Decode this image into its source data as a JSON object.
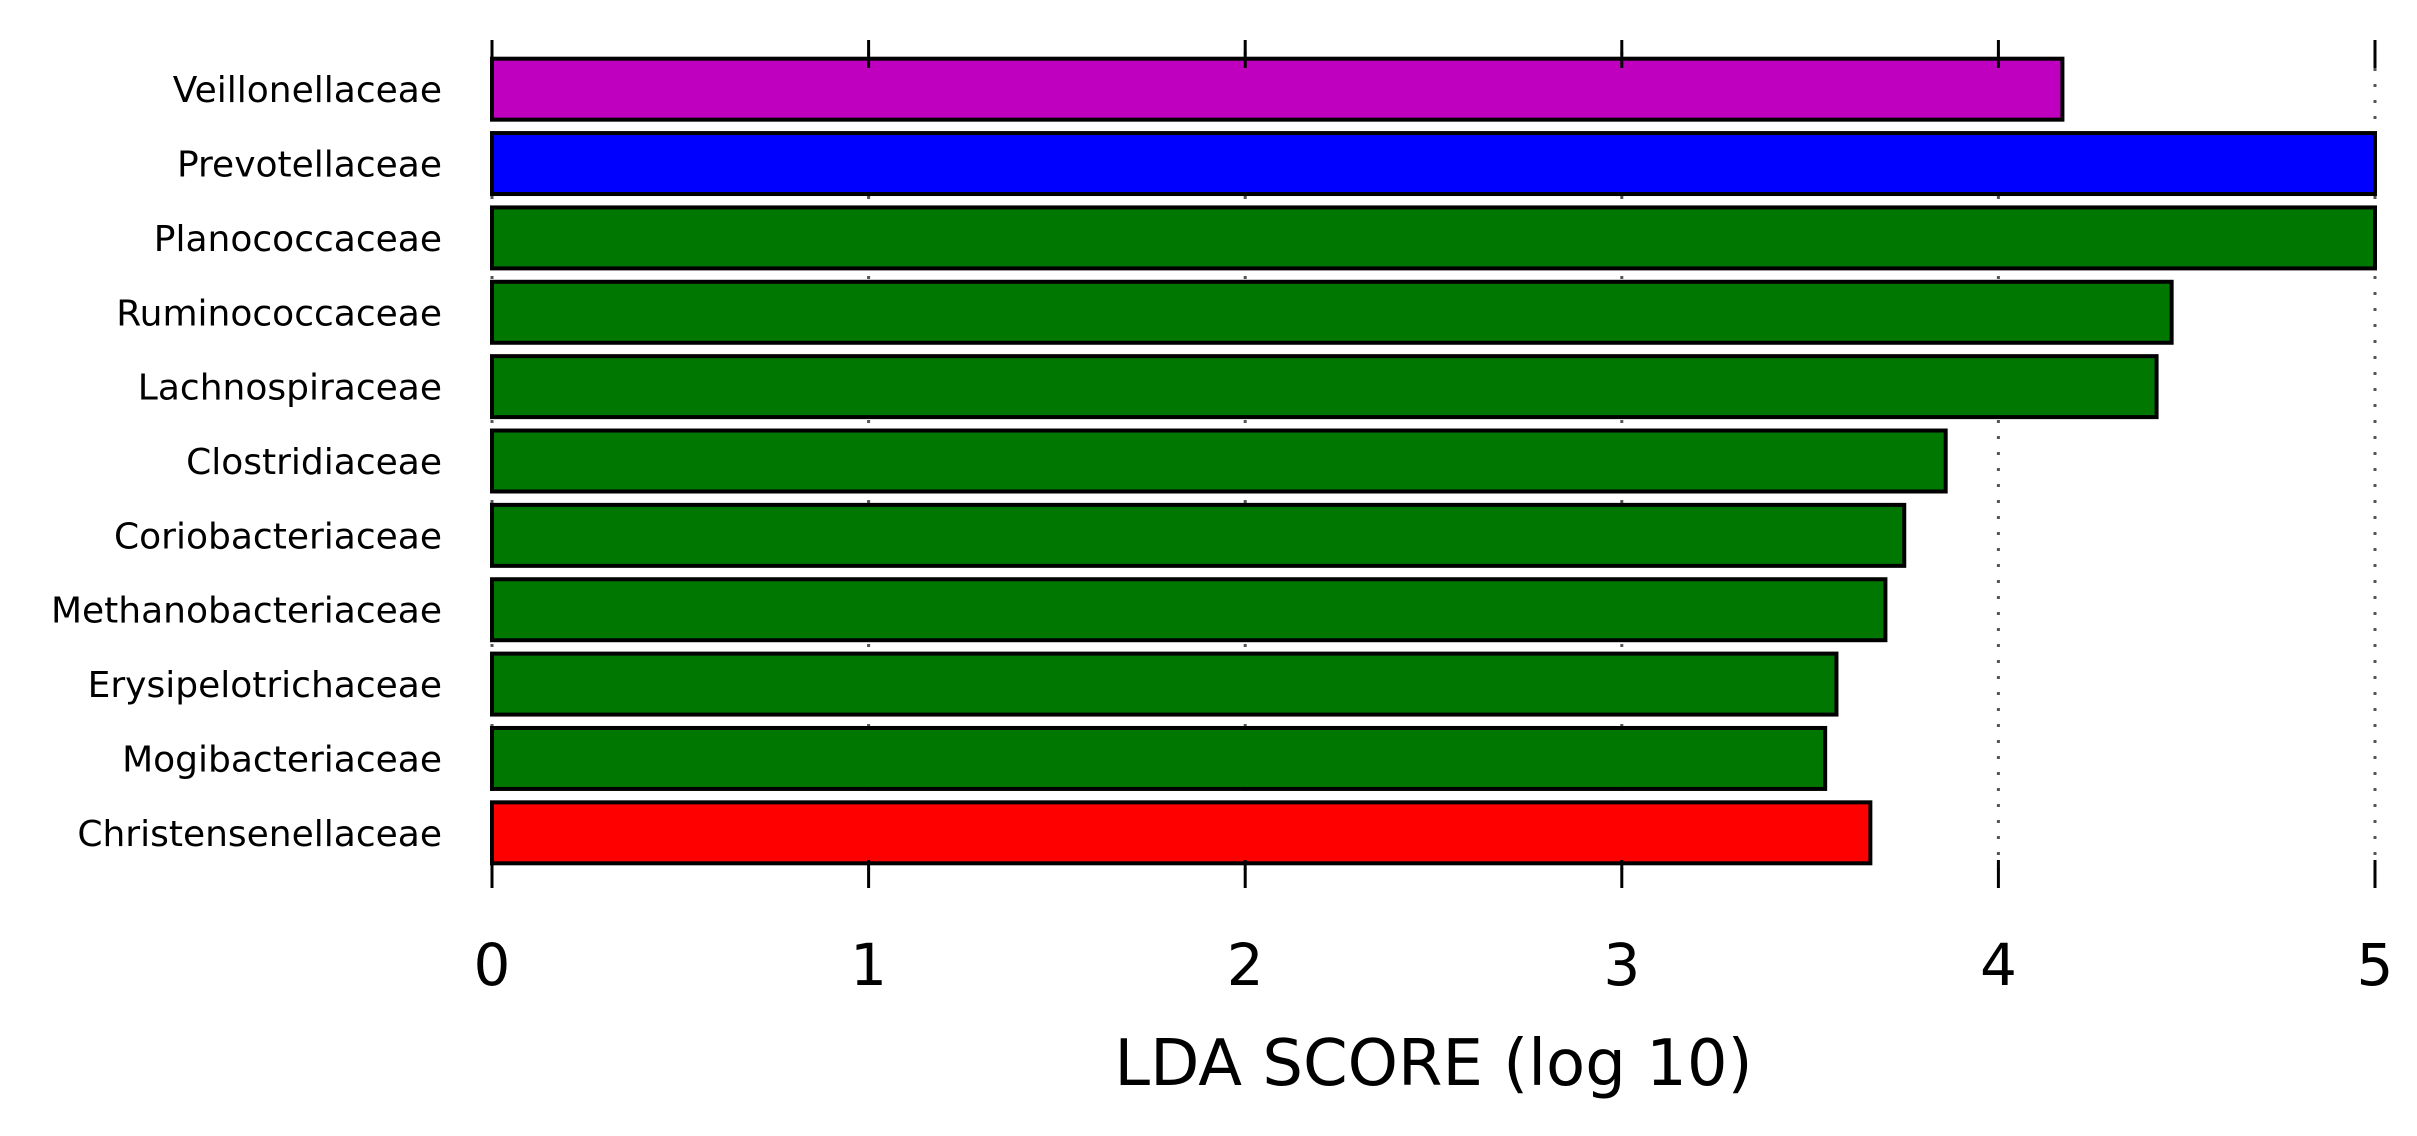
{
  "chart_data": {
    "type": "bar",
    "orientation": "horizontal",
    "xlabel": "LDA SCORE (log 10)",
    "ylabel": "",
    "title": "",
    "xlim": [
      0,
      5
    ],
    "xticks": [
      "0",
      "1",
      "2",
      "3",
      "4",
      "5"
    ],
    "grid": "vertical dotted",
    "legend": "none",
    "categories": [
      "Veillonellaceae",
      "Prevotellaceae",
      "Planococcaceae",
      "Ruminococcaceae",
      "Lachnospiraceae",
      "Clostridiaceae",
      "Coriobacteriaceae",
      "Methanobacteriaceae",
      "Erysipelotrichaceae",
      "Mogibacteriaceae",
      "Christensenellaceae"
    ],
    "values": [
      4.17,
      5.0,
      5.0,
      4.46,
      4.42,
      3.86,
      3.75,
      3.7,
      3.57,
      3.54,
      3.66
    ],
    "colors": [
      "#bf00bf",
      "#0000ff",
      "#007700",
      "#007700",
      "#007700",
      "#007700",
      "#007700",
      "#007700",
      "#007700",
      "#007700",
      "#ff0000"
    ]
  }
}
